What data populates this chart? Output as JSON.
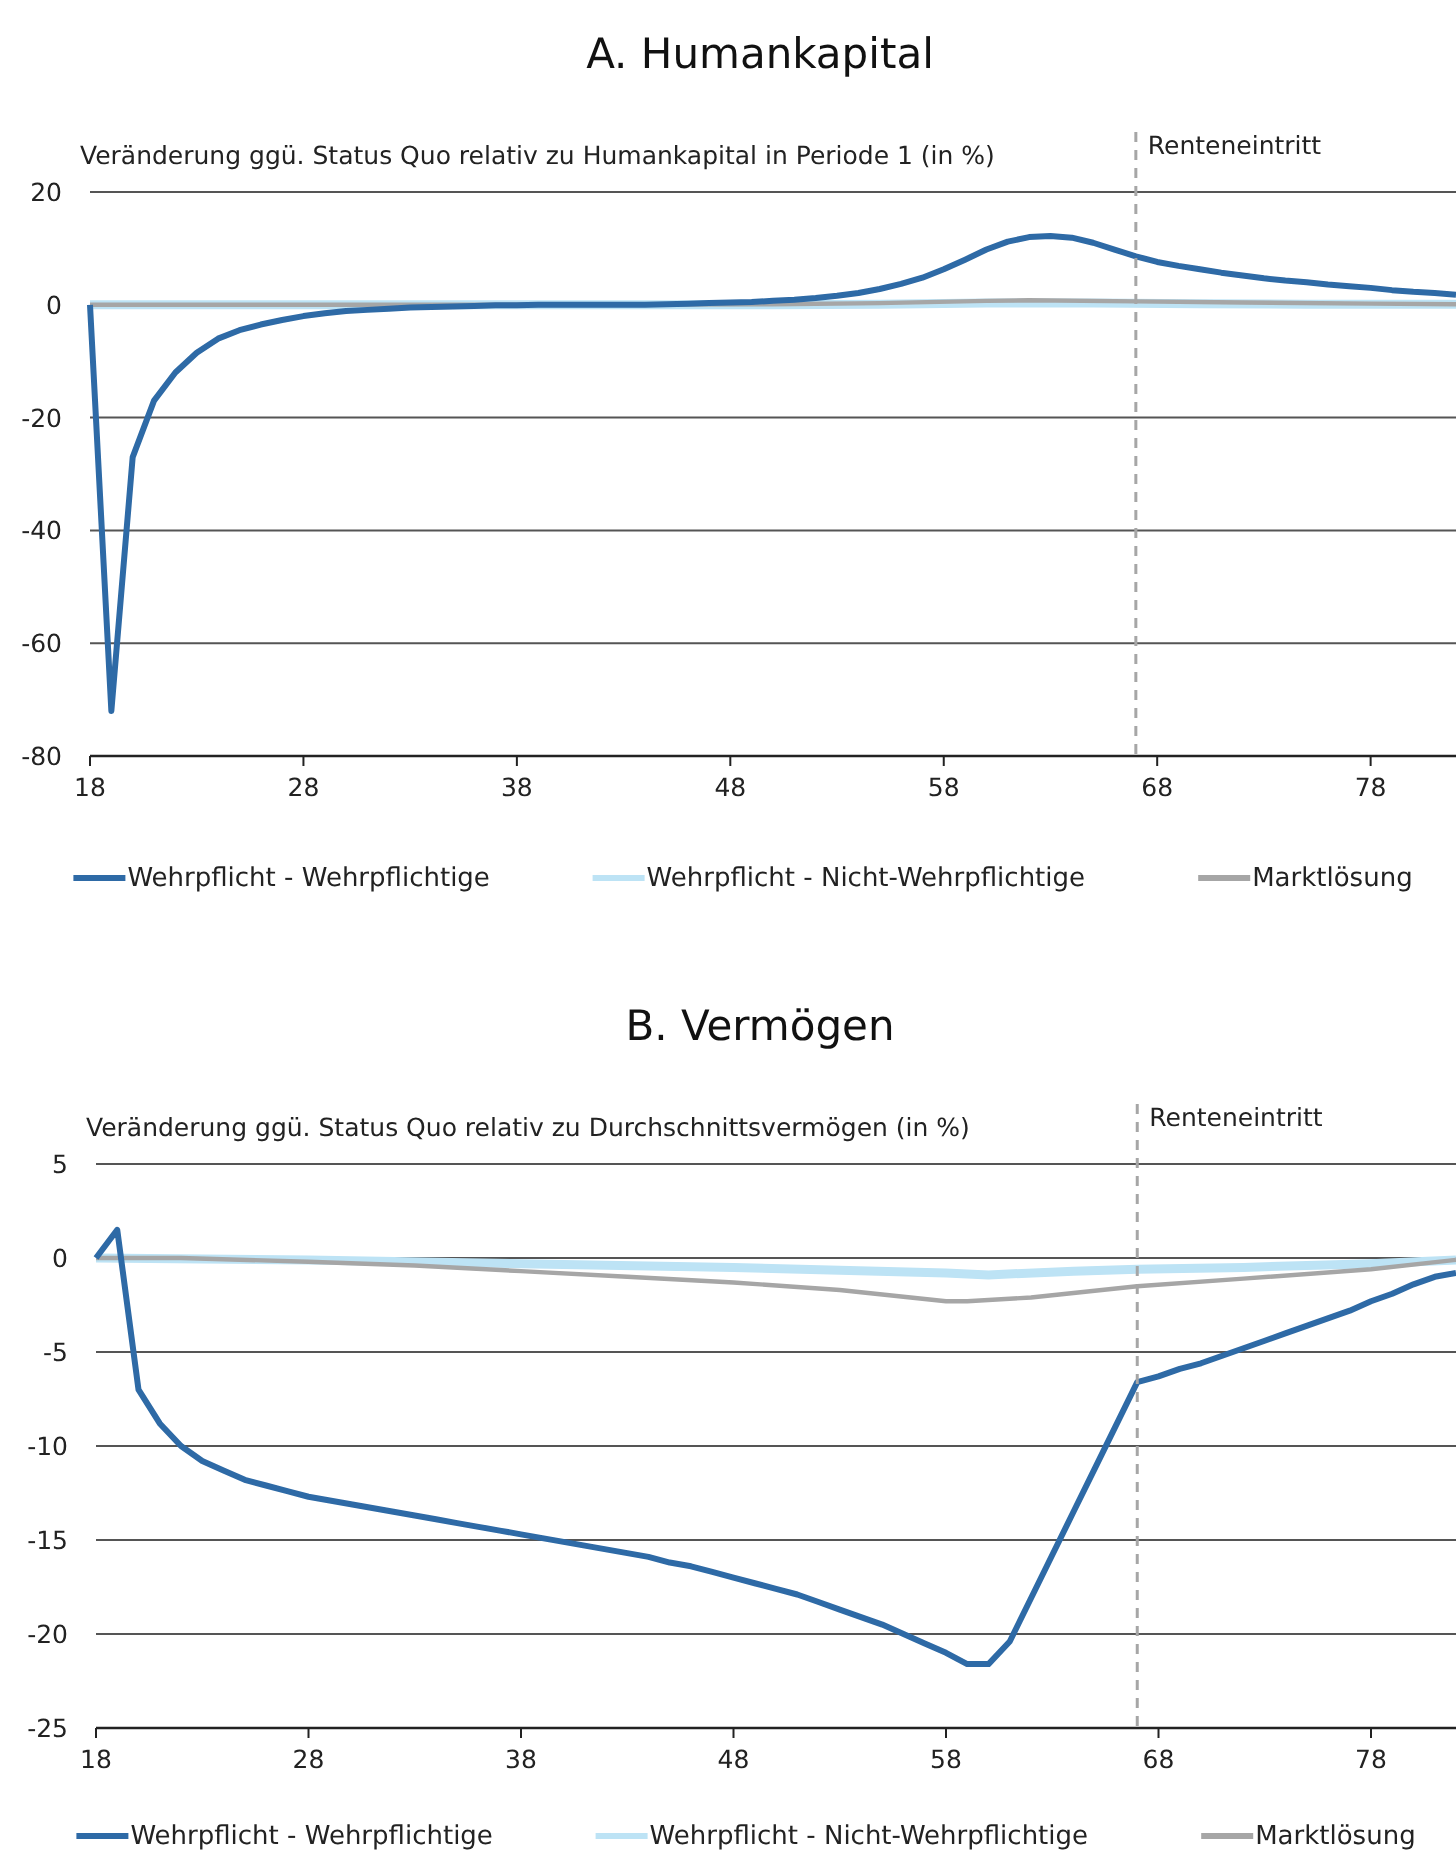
{
  "chart_data": [
    {
      "type": "line",
      "title": "A. Humankapital",
      "ylabel": "Veränderung ggü. Status Quo relativ zu Humankapital in Periode 1 (in %)",
      "x": [
        18,
        19,
        20,
        21,
        22,
        23,
        24,
        25,
        26,
        27,
        28,
        29,
        30,
        31,
        32,
        33,
        34,
        35,
        36,
        37,
        38,
        39,
        40,
        41,
        42,
        43,
        44,
        45,
        46,
        47,
        48,
        49,
        50,
        51,
        52,
        53,
        54,
        55,
        56,
        57,
        58,
        59,
        60,
        61,
        62,
        63,
        64,
        65,
        66,
        67,
        68,
        69,
        70,
        71,
        72,
        73,
        74,
        75,
        76,
        77,
        78,
        79,
        80,
        81,
        82
      ],
      "xlim": [
        18,
        82
      ],
      "xticks": [
        18,
        28,
        38,
        48,
        58,
        68,
        78
      ],
      "ylim": [
        -80,
        20
      ],
      "yticks": [
        -80,
        -60,
        -40,
        -20,
        0,
        20
      ],
      "grid": "y",
      "legend": "bottom",
      "ref_lines": [
        {
          "axis": "x",
          "value": 67,
          "label": "Renteneintritt",
          "color": "#a6a6a6",
          "line_style": "dashed"
        }
      ],
      "series": [
        {
          "name": "Wehrpflicht - Wehrpflichtige",
          "color": "#2e6aa6",
          "values": [
            0,
            -72,
            -27,
            -17,
            -12,
            -8.5,
            -6,
            -4.5,
            -3.5,
            -2.7,
            -2,
            -1.5,
            -1.1,
            -0.9,
            -0.7,
            -0.5,
            -0.4,
            -0.3,
            -0.2,
            -0.1,
            -0.1,
            0,
            0,
            0,
            0,
            0,
            0,
            0.1,
            0.2,
            0.3,
            0.4,
            0.5,
            0.7,
            0.9,
            1.2,
            1.6,
            2.1,
            2.8,
            3.7,
            4.8,
            6.3,
            8,
            9.8,
            11.2,
            12,
            12.2,
            11.9,
            11,
            9.8,
            8.6,
            7.6,
            6.9,
            6.3,
            5.7,
            5.2,
            4.7,
            4.3,
            4,
            3.6,
            3.3,
            3,
            2.6,
            2.3,
            2.1,
            1.8
          ]
        },
        {
          "name": "Wehrpflicht - Nicht-Wehrpflichtige",
          "color": "#bde3f5",
          "x": [
            18,
            30,
            40,
            50,
            55,
            60,
            65,
            70,
            75,
            82
          ],
          "values": [
            0,
            0,
            0,
            0,
            0.1,
            0.3,
            0.3,
            0.2,
            0.1,
            0.1
          ]
        },
        {
          "name": "Marktlösung",
          "color": "#a6a6a6",
          "x": [
            18,
            30,
            40,
            50,
            55,
            60,
            62,
            67,
            72,
            78,
            82
          ],
          "values": [
            0,
            0,
            0,
            0.1,
            0.3,
            0.7,
            0.8,
            0.6,
            0.4,
            0.2,
            0.1
          ]
        }
      ]
    },
    {
      "type": "line",
      "title": "B. Vermögen",
      "ylabel": "Veränderung ggü. Status Quo relativ zu Durchschnittsvermögen (in %)",
      "x": [
        18,
        19,
        20,
        21,
        22,
        23,
        24,
        25,
        26,
        27,
        28,
        29,
        30,
        31,
        32,
        33,
        34,
        35,
        36,
        37,
        38,
        39,
        40,
        41,
        42,
        43,
        44,
        45,
        46,
        47,
        48,
        49,
        50,
        51,
        52,
        53,
        54,
        55,
        56,
        57,
        58,
        59,
        60,
        61,
        62,
        63,
        64,
        65,
        66,
        67,
        68,
        69,
        70,
        71,
        72,
        73,
        74,
        75,
        76,
        77,
        78,
        79,
        80,
        81,
        82
      ],
      "xlim": [
        18,
        82
      ],
      "xticks": [
        18,
        28,
        38,
        48,
        58,
        68,
        78
      ],
      "ylim": [
        -25,
        5
      ],
      "yticks": [
        -25,
        -20,
        -15,
        -10,
        -5,
        0,
        5
      ],
      "grid": "y",
      "legend": "bottom",
      "ref_lines": [
        {
          "axis": "x",
          "value": 67,
          "label": "Renteneintritt",
          "color": "#a6a6a6",
          "line_style": "dashed"
        }
      ],
      "series": [
        {
          "name": "Wehrpflicht - Wehrpflichtige",
          "color": "#2e6aa6",
          "values": [
            0,
            1.5,
            -7,
            -8.8,
            -10,
            -10.8,
            -11.3,
            -11.8,
            -12.1,
            -12.4,
            -12.7,
            -12.9,
            -13.1,
            -13.3,
            -13.5,
            -13.7,
            -13.9,
            -14.1,
            -14.3,
            -14.5,
            -14.7,
            -14.9,
            -15.1,
            -15.3,
            -15.5,
            -15.7,
            -15.9,
            -16.2,
            -16.4,
            -16.7,
            -17,
            -17.3,
            -17.6,
            -17.9,
            -18.3,
            -18.7,
            -19.1,
            -19.5,
            -20,
            -20.5,
            -21,
            -21.6,
            -21.6,
            -20.4,
            -18.1,
            -15.8,
            -13.5,
            -11.2,
            -8.9,
            -6.6,
            -6.3,
            -5.9,
            -5.6,
            -5.2,
            -4.8,
            -4.4,
            -4,
            -3.6,
            -3.2,
            -2.8,
            -2.3,
            -1.9,
            -1.4,
            -1,
            -0.8
          ]
        },
        {
          "name": "Wehrpflicht - Nicht-Wehrpflichtige",
          "color": "#bde3f5",
          "x": [
            18,
            28,
            38,
            48,
            58,
            60,
            64,
            67,
            72,
            78,
            82
          ],
          "values": [
            0,
            -0.1,
            -0.3,
            -0.5,
            -0.8,
            -0.9,
            -0.7,
            -0.6,
            -0.5,
            -0.3,
            -0.1
          ]
        },
        {
          "name": "Marktlösung",
          "color": "#a6a6a6",
          "x": [
            18,
            22,
            28,
            33,
            38,
            43,
            48,
            53,
            58,
            59,
            62,
            67,
            72,
            78,
            82
          ],
          "values": [
            0,
            0,
            -0.2,
            -0.4,
            -0.7,
            -1,
            -1.3,
            -1.7,
            -2.3,
            -2.3,
            -2.1,
            -1.5,
            -1.1,
            -0.6,
            -0.1
          ]
        }
      ]
    }
  ]
}
